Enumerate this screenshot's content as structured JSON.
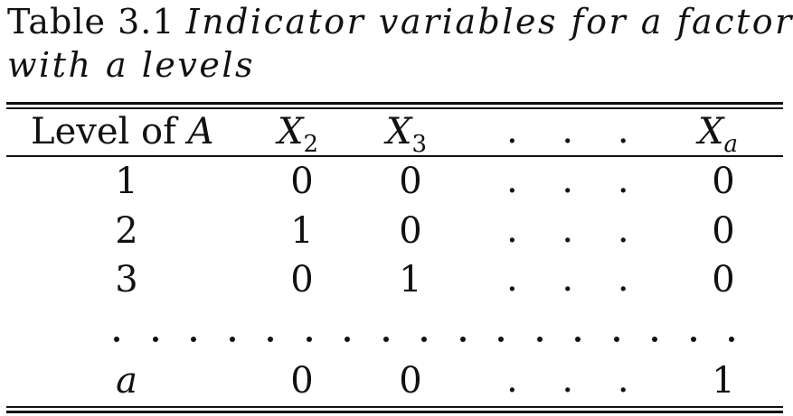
{
  "caption": {
    "line1_number": "Table 3.1",
    "line1_title": "Indicator variables for a factor",
    "line2_title": "with a levels"
  },
  "table": {
    "header": {
      "level_label": "Level of",
      "level_var": "A",
      "x2_main": "X",
      "x2_sub": "2",
      "x3_main": "X",
      "x3_sub": "3",
      "ellipsis": ". . .",
      "xa_main": "X",
      "xa_sub": "a"
    },
    "rows": [
      {
        "level": "1",
        "x2": "0",
        "x3": "0",
        "dots": ". . .",
        "xa": "0"
      },
      {
        "level": "2",
        "x2": "1",
        "x3": "0",
        "dots": ". . .",
        "xa": "0"
      },
      {
        "level": "3",
        "x2": "0",
        "x3": "1",
        "dots": ". . .",
        "xa": "0"
      },
      {
        "level": "a",
        "x2": "0",
        "x3": "0",
        "dots": ". . .",
        "xa": "1"
      }
    ]
  }
}
